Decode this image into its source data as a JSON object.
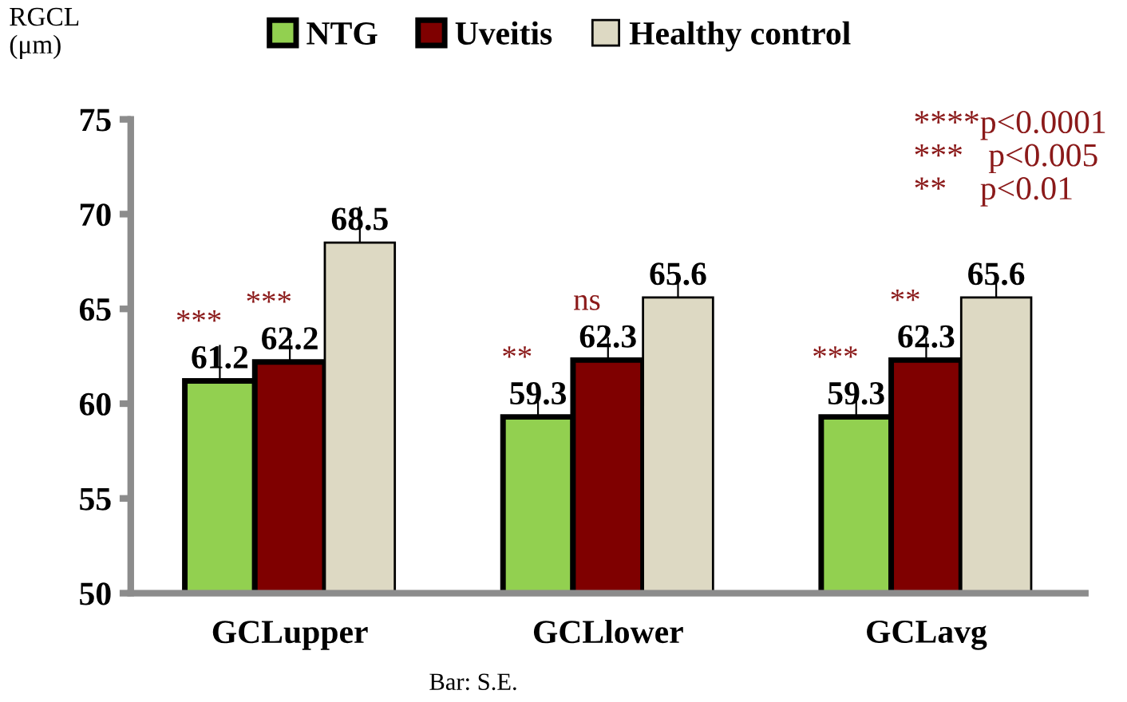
{
  "chart_data": {
    "type": "bar",
    "categories": [
      "GCLupper",
      "GCLlower",
      "GCLavg"
    ],
    "series": [
      {
        "name": "NTG",
        "color": "#92d050",
        "values": [
          61.2,
          59.3,
          59.3
        ],
        "errors": [
          1.9,
          1.4,
          1.4
        ]
      },
      {
        "name": "Uveitis",
        "color": "#7f0000",
        "values": [
          62.2,
          62.3,
          62.3
        ],
        "errors": [
          1.2,
          1.2,
          1.2
        ]
      },
      {
        "name": "Healthy control",
        "color": "#ddd9c3",
        "values": [
          68.5,
          65.6,
          65.6
        ],
        "errors": [
          1.9,
          1.3,
          1.3
        ]
      }
    ],
    "ylim": [
      50,
      75
    ],
    "yticks": [
      50,
      55,
      60,
      65,
      70,
      75
    ],
    "data_labels": true,
    "legend": "top",
    "grid": false,
    "annotations": [
      "RGCL\n(μm)",
      "***",
      "***",
      "**",
      "ns",
      "***",
      "**",
      "****p<0.0001",
      "***   p<0.005",
      "**    p<0.01",
      "Bar: S.E."
    ]
  }
}
